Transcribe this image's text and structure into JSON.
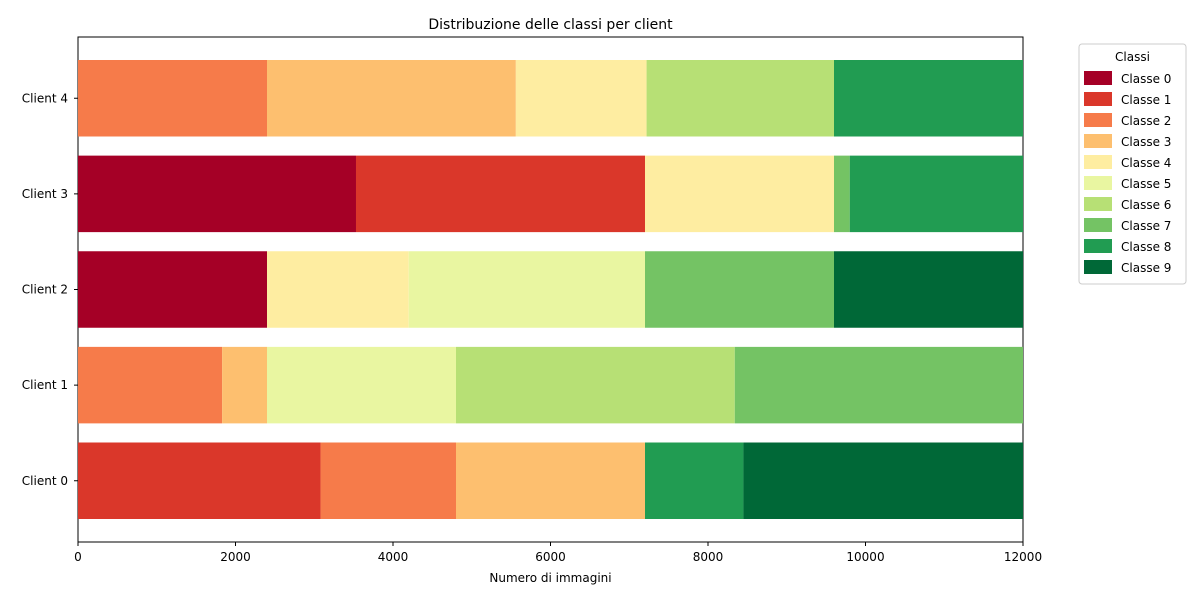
{
  "chart_data": {
    "type": "bar",
    "orientation": "horizontal",
    "stacked": true,
    "title": "Distribuzione delle classi per client",
    "xlabel": "Numero di immagini",
    "ylabel": "",
    "xlim": [
      0,
      12000
    ],
    "xticks": [
      0,
      2000,
      4000,
      6000,
      8000,
      10000,
      12000
    ],
    "grid": false,
    "legend_title": "Classi",
    "legend_position": "outside-right-top",
    "categories": [
      "Client 0",
      "Client 1",
      "Client 2",
      "Client 3",
      "Client 4"
    ],
    "series": [
      {
        "name": "Classe 0",
        "color": "#a50026",
        "values": [
          0,
          0,
          2400,
          3530,
          0
        ]
      },
      {
        "name": "Classe 1",
        "color": "#da372a",
        "values": [
          3080,
          0,
          0,
          3670,
          0
        ]
      },
      {
        "name": "Classe 2",
        "color": "#f67b4a",
        "values": [
          1720,
          1830,
          0,
          0,
          2400
        ]
      },
      {
        "name": "Classe 3",
        "color": "#fdbf6f",
        "values": [
          2400,
          570,
          0,
          0,
          3160
        ]
      },
      {
        "name": "Classe 4",
        "color": "#feeda1",
        "values": [
          0,
          0,
          1800,
          2400,
          1660
        ]
      },
      {
        "name": "Classe 5",
        "color": "#e9f6a1",
        "values": [
          0,
          2400,
          3000,
          0,
          0
        ]
      },
      {
        "name": "Classe 6",
        "color": "#b7e075",
        "values": [
          0,
          3540,
          0,
          0,
          2380
        ]
      },
      {
        "name": "Classe 7",
        "color": "#74c364",
        "values": [
          0,
          3660,
          2400,
          200,
          0
        ]
      },
      {
        "name": "Classe 8",
        "color": "#219c52",
        "values": [
          1250,
          0,
          0,
          2200,
          2400
        ]
      },
      {
        "name": "Classe 9",
        "color": "#006837",
        "values": [
          3550,
          0,
          2400,
          0,
          0
        ]
      }
    ]
  }
}
